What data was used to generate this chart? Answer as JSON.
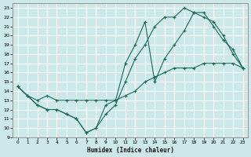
{
  "xlabel": "Humidex (Indice chaleur)",
  "bg_color": "#cce8e8",
  "line_color": "#1a6b5a",
  "grid_color": "#b8d8d8",
  "xlim": [
    -0.5,
    23.5
  ],
  "ylim": [
    9,
    23.5
  ],
  "yticks": [
    9,
    10,
    11,
    12,
    13,
    14,
    15,
    16,
    17,
    18,
    19,
    20,
    21,
    22,
    23
  ],
  "xticks": [
    0,
    1,
    2,
    3,
    4,
    5,
    6,
    7,
    8,
    9,
    10,
    11,
    12,
    13,
    14,
    15,
    16,
    17,
    18,
    19,
    20,
    21,
    22,
    23
  ],
  "line1_x": [
    0,
    1,
    2,
    3,
    4,
    5,
    6,
    7,
    8,
    9,
    10,
    11,
    12,
    13,
    14,
    15,
    16,
    17,
    18,
    19,
    20,
    21,
    22,
    23
  ],
  "line1_y": [
    14.5,
    13.5,
    13.0,
    13.5,
    13.0,
    13.0,
    13.0,
    13.0,
    13.0,
    13.0,
    13.0,
    13.5,
    14.0,
    15.0,
    15.5,
    16.0,
    16.5,
    16.5,
    16.5,
    17.0,
    17.0,
    17.0,
    17.0,
    16.5
  ],
  "line2_x": [
    0,
    1,
    2,
    3,
    4,
    5,
    6,
    7,
    8,
    9,
    10,
    11,
    12,
    13,
    14,
    15,
    16,
    17,
    18,
    19,
    20,
    21,
    22,
    23
  ],
  "line2_y": [
    14.5,
    13.5,
    12.5,
    12.0,
    12.0,
    11.5,
    11.0,
    9.5,
    10.0,
    11.5,
    12.5,
    15.0,
    17.5,
    19.0,
    21.0,
    22.0,
    22.0,
    23.0,
    22.5,
    22.5,
    21.0,
    19.5,
    18.5,
    16.5
  ],
  "line3_x": [
    0,
    1,
    2,
    3,
    4,
    5,
    6,
    7,
    8,
    9,
    10,
    11,
    12,
    13,
    14,
    15,
    16,
    17,
    18,
    19,
    20,
    21,
    22,
    23
  ],
  "line3_y": [
    14.5,
    13.5,
    12.5,
    12.0,
    12.0,
    11.5,
    11.0,
    9.5,
    10.0,
    12.5,
    13.0,
    17.0,
    19.0,
    21.5,
    15.0,
    17.5,
    19.0,
    20.5,
    22.5,
    22.0,
    21.5,
    20.0,
    18.0,
    16.5
  ]
}
